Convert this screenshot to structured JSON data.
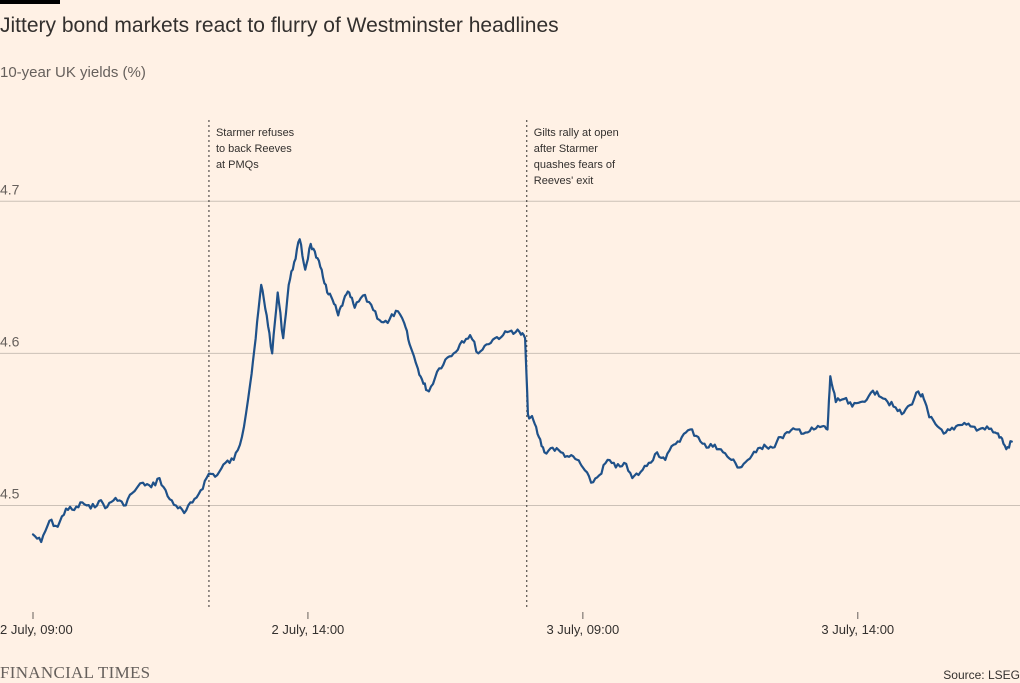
{
  "colors": {
    "background": "#FFF1E5",
    "line": "#1F5189",
    "grid": "#CCC1B7",
    "text": "#33302E",
    "muted": "#66605C"
  },
  "footer": {
    "brand": "FINANCIAL TIMES",
    "source": "Source: LSEG"
  },
  "chart_data": {
    "type": "line",
    "title": "Jittery bond markets react to flurry of Westminster headlines",
    "subtitle": "10-year UK yields (%)",
    "ylim": [
      4.43,
      4.76
    ],
    "yticks": [
      {
        "value": 4.5,
        "label": "4.5"
      },
      {
        "value": 4.6,
        "label": "4.6"
      },
      {
        "value": 4.7,
        "label": "4.7"
      }
    ],
    "xlim": [
      -0.6,
      17.95
    ],
    "xticks": [
      {
        "x": 0,
        "label": "2 July, 09:00"
      },
      {
        "x": 5,
        "label": "2 July, 14:00"
      },
      {
        "x": 10,
        "label": "3 July, 09:00"
      },
      {
        "x": 15,
        "label": "3 July, 14:00"
      }
    ],
    "grid": true,
    "annotations": [
      {
        "x": 3.2,
        "lines": [
          "Starmer refuses",
          "to back Reeves",
          "at PMQs"
        ]
      },
      {
        "x": 8.98,
        "lines": [
          "Gilts rally at open",
          "after Starmer",
          "quashes fears of",
          "Reeves' exit"
        ]
      }
    ],
    "series": [
      {
        "points": [
          [
            0.0,
            4.481
          ],
          [
            0.15,
            4.476
          ],
          [
            0.3,
            4.49
          ],
          [
            0.45,
            4.486
          ],
          [
            0.6,
            4.498
          ],
          [
            0.75,
            4.497
          ],
          [
            0.9,
            4.502
          ],
          [
            1.05,
            4.498
          ],
          [
            1.2,
            4.503
          ],
          [
            1.35,
            4.499
          ],
          [
            1.5,
            4.505
          ],
          [
            1.65,
            4.5
          ],
          [
            1.8,
            4.508
          ],
          [
            2.0,
            4.515
          ],
          [
            2.15,
            4.512
          ],
          [
            2.3,
            4.518
          ],
          [
            2.45,
            4.506
          ],
          [
            2.6,
            4.5
          ],
          [
            2.75,
            4.495
          ],
          [
            2.9,
            4.502
          ],
          [
            3.05,
            4.51
          ],
          [
            3.2,
            4.521
          ],
          [
            3.35,
            4.52
          ],
          [
            3.5,
            4.528
          ],
          [
            3.65,
            4.53
          ],
          [
            3.8,
            4.545
          ],
          [
            3.95,
            4.58
          ],
          [
            4.05,
            4.61
          ],
          [
            4.15,
            4.645
          ],
          [
            4.25,
            4.625
          ],
          [
            4.35,
            4.6
          ],
          [
            4.45,
            4.64
          ],
          [
            4.55,
            4.61
          ],
          [
            4.65,
            4.645
          ],
          [
            4.75,
            4.66
          ],
          [
            4.85,
            4.675
          ],
          [
            4.95,
            4.655
          ],
          [
            5.05,
            4.672
          ],
          [
            5.15,
            4.663
          ],
          [
            5.25,
            4.655
          ],
          [
            5.35,
            4.64
          ],
          [
            5.45,
            4.635
          ],
          [
            5.55,
            4.625
          ],
          [
            5.65,
            4.635
          ],
          [
            5.75,
            4.64
          ],
          [
            5.85,
            4.63
          ],
          [
            6.0,
            4.638
          ],
          [
            6.15,
            4.632
          ],
          [
            6.3,
            4.622
          ],
          [
            6.45,
            4.62
          ],
          [
            6.6,
            4.628
          ],
          [
            6.75,
            4.62
          ],
          [
            6.85,
            4.606
          ],
          [
            7.0,
            4.59
          ],
          [
            7.1,
            4.58
          ],
          [
            7.2,
            4.575
          ],
          [
            7.35,
            4.588
          ],
          [
            7.5,
            4.596
          ],
          [
            7.65,
            4.6
          ],
          [
            7.8,
            4.608
          ],
          [
            7.95,
            4.612
          ],
          [
            8.1,
            4.6
          ],
          [
            8.25,
            4.606
          ],
          [
            8.4,
            4.61
          ],
          [
            8.55,
            4.612
          ],
          [
            8.7,
            4.615
          ],
          [
            8.85,
            4.614
          ],
          [
            8.95,
            4.61
          ],
          [
            9.0,
            4.56
          ],
          [
            9.1,
            4.556
          ],
          [
            9.2,
            4.545
          ],
          [
            9.3,
            4.535
          ],
          [
            9.45,
            4.538
          ],
          [
            9.6,
            4.535
          ],
          [
            9.75,
            4.532
          ],
          [
            9.9,
            4.53
          ],
          [
            10.0,
            4.525
          ],
          [
            10.15,
            4.515
          ],
          [
            10.3,
            4.52
          ],
          [
            10.45,
            4.53
          ],
          [
            10.6,
            4.525
          ],
          [
            10.75,
            4.528
          ],
          [
            10.9,
            4.518
          ],
          [
            11.05,
            4.522
          ],
          [
            11.2,
            4.528
          ],
          [
            11.35,
            4.535
          ],
          [
            11.5,
            4.53
          ],
          [
            11.65,
            4.54
          ],
          [
            11.8,
            4.545
          ],
          [
            11.95,
            4.55
          ],
          [
            12.1,
            4.545
          ],
          [
            12.25,
            4.538
          ],
          [
            12.4,
            4.54
          ],
          [
            12.55,
            4.535
          ],
          [
            12.7,
            4.53
          ],
          [
            12.85,
            4.525
          ],
          [
            13.0,
            4.53
          ],
          [
            13.15,
            4.535
          ],
          [
            13.3,
            4.54
          ],
          [
            13.45,
            4.538
          ],
          [
            13.6,
            4.545
          ],
          [
            13.75,
            4.548
          ],
          [
            13.9,
            4.55
          ],
          [
            14.05,
            4.548
          ],
          [
            14.2,
            4.55
          ],
          [
            14.35,
            4.552
          ],
          [
            14.45,
            4.55
          ],
          [
            14.5,
            4.585
          ],
          [
            14.6,
            4.568
          ],
          [
            14.75,
            4.57
          ],
          [
            14.9,
            4.565
          ],
          [
            15.05,
            4.568
          ],
          [
            15.2,
            4.572
          ],
          [
            15.35,
            4.575
          ],
          [
            15.5,
            4.57
          ],
          [
            15.65,
            4.565
          ],
          [
            15.8,
            4.56
          ],
          [
            15.95,
            4.566
          ],
          [
            16.1,
            4.575
          ],
          [
            16.2,
            4.57
          ],
          [
            16.3,
            4.558
          ],
          [
            16.45,
            4.552
          ],
          [
            16.6,
            4.548
          ],
          [
            16.75,
            4.55
          ],
          [
            16.9,
            4.553
          ],
          [
            17.05,
            4.552
          ],
          [
            17.2,
            4.55
          ],
          [
            17.35,
            4.552
          ],
          [
            17.5,
            4.548
          ],
          [
            17.6,
            4.545
          ],
          [
            17.7,
            4.537
          ],
          [
            17.8,
            4.542
          ]
        ]
      }
    ]
  }
}
